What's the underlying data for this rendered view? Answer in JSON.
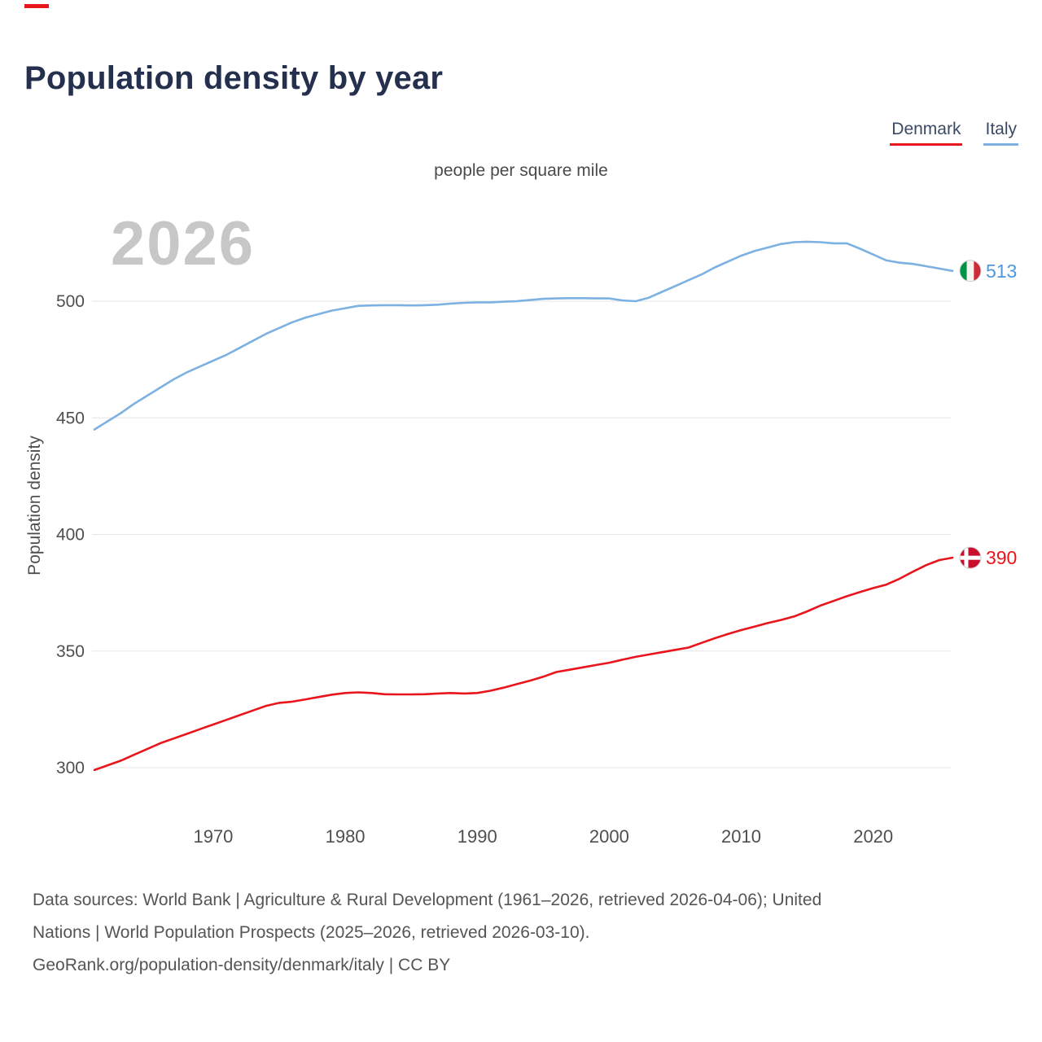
{
  "page": {
    "title": "Population density by year",
    "subtitle": "people per square mile",
    "watermark_year": "2026",
    "y_axis_title": "Population density",
    "footer_lines": [
      "Data sources: World Bank | Agriculture & Rural Development (1961–2026, retrieved 2026-04-06); United",
      "Nations | World Population Prospects (2025–2026, retrieved 2026-03-10).",
      "GeoRank.org/population-density/denmark/italy | CC BY"
    ]
  },
  "colors": {
    "title": "#24304e",
    "denmark_red": "#e8151c",
    "italy_blue": "#7cb1e2",
    "gridline": "#e6e6e6",
    "tick_text": "#4f4f4f",
    "watermark": "#c7c7c7"
  },
  "chart_data": {
    "type": "line",
    "title": "Population density by year",
    "subtitle": "people per square mile",
    "xlabel": "",
    "ylabel": "Population density",
    "unit": "people per square mile",
    "x_start": 1961,
    "x_end": 2026,
    "x_ticks": [
      1970,
      1980,
      1990,
      2000,
      2010,
      2020
    ],
    "y_ticks": [
      300,
      350,
      400,
      450,
      500
    ],
    "ylim": [
      290,
      535
    ],
    "grid": "horizontal",
    "legend_position": "top-right",
    "series": [
      {
        "name": "Denmark",
        "color": "#e8151c",
        "label_color": "#e8151c",
        "flag": "denmark",
        "end_label": "390",
        "end_value": 390,
        "values": [
          299,
          301,
          303,
          305.5,
          308,
          310.5,
          312.5,
          314.5,
          316.5,
          318.5,
          320.5,
          322.5,
          324.5,
          326.5,
          327.8,
          328.3,
          329.3,
          330.3,
          331.3,
          332,
          332.3,
          332,
          331.5,
          331.4,
          331.4,
          331.5,
          331.8,
          332,
          331.8,
          332,
          333,
          334.3,
          335.8,
          337.3,
          339,
          341,
          342,
          343,
          344,
          345,
          346.3,
          347.5,
          348.5,
          349.5,
          350.5,
          351.5,
          353.5,
          355.5,
          357.3,
          359,
          360.5,
          362,
          363.3,
          364.8,
          367,
          369.5,
          371.5,
          373.5,
          375.3,
          377,
          378.5,
          381,
          384,
          386.8,
          389,
          390
        ]
      },
      {
        "name": "Italy",
        "color": "#7cb1e2",
        "label_color": "#4e97dd",
        "flag": "italy",
        "end_label": "513",
        "end_value": 513,
        "values": [
          445,
          448.5,
          452,
          456,
          459.5,
          463,
          466.5,
          469.5,
          472,
          474.5,
          477,
          480,
          483,
          486,
          488.5,
          491,
          493,
          494.5,
          496,
          497,
          498,
          498.2,
          498.3,
          498.3,
          498.2,
          498.3,
          498.5,
          499,
          499.3,
          499.5,
          499.5,
          499.8,
          500,
          500.5,
          501,
          501.2,
          501.3,
          501.3,
          501.2,
          501.2,
          500.3,
          500,
          501.5,
          504,
          506.5,
          509,
          511.5,
          514.5,
          517,
          519.5,
          521.5,
          523,
          524.5,
          525.3,
          525.5,
          525.3,
          524.8,
          524.8,
          522.5,
          520,
          517.5,
          516.5,
          516,
          515,
          514,
          513
        ]
      }
    ]
  }
}
